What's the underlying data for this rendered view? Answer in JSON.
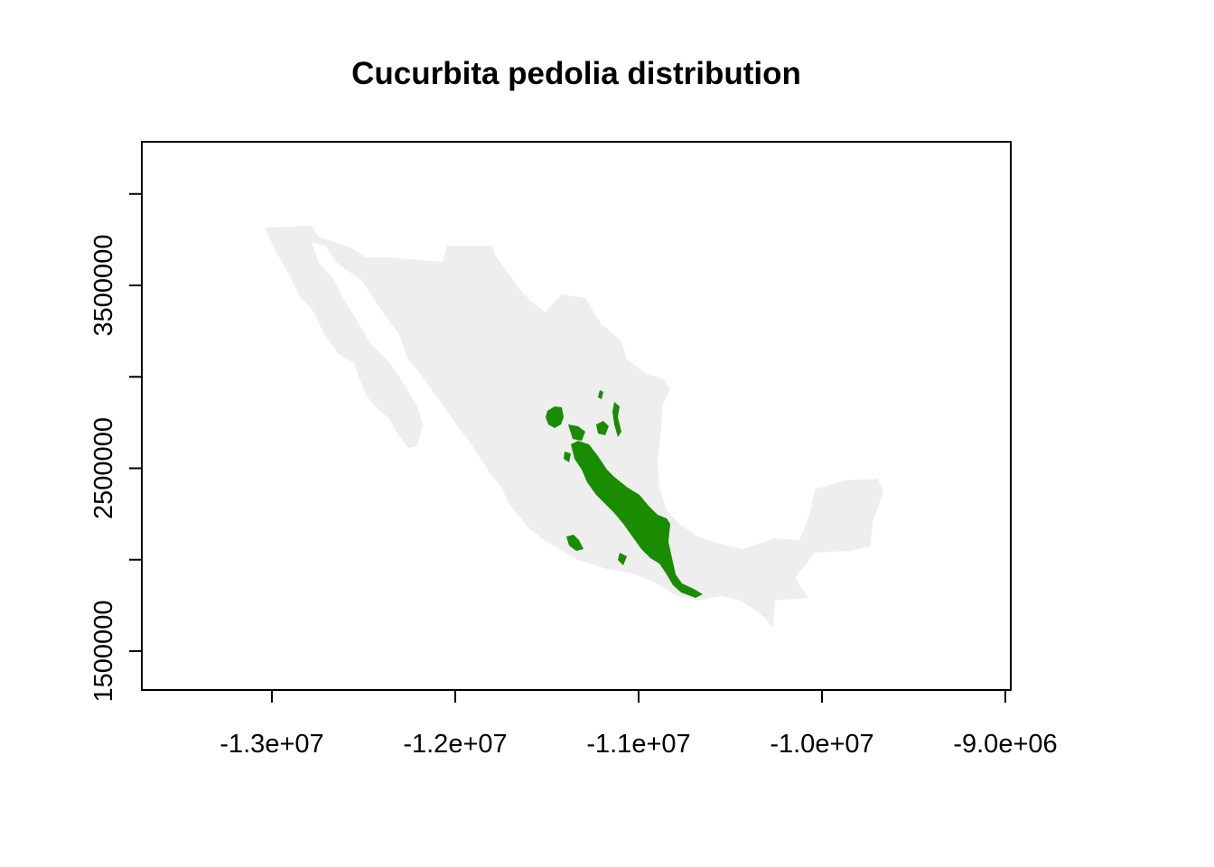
{
  "title": "Cucurbita pedolia distribution",
  "colors": {
    "background_land": "#eeeeee",
    "distribution": "#1a8c00",
    "axis": "#000000"
  },
  "map": {
    "projection": "Web Mercator (EPSG:3857)",
    "xlim": [
      -13700000,
      -8950000
    ],
    "ylim": [
      1300000,
      4300000
    ],
    "x_ticks": [
      {
        "value": -13000000,
        "label": "-1.3e+07"
      },
      {
        "value": -12000000,
        "label": "-1.2e+07"
      },
      {
        "value": -11000000,
        "label": "-1.1e+07"
      },
      {
        "value": -10000000,
        "label": "-1.0e+07"
      },
      {
        "value": -9000000,
        "label": "-9.0e+06"
      }
    ],
    "y_ticks": [
      {
        "value": 1500000,
        "label": "1500000"
      },
      {
        "value": 2000000,
        "label": ""
      },
      {
        "value": 2500000,
        "label": "2500000"
      },
      {
        "value": 3000000,
        "label": ""
      },
      {
        "value": 3500000,
        "label": "3500000"
      },
      {
        "value": 4000000,
        "label": ""
      }
    ],
    "layers": [
      {
        "name": "Mexico",
        "color": "#eeeeee"
      },
      {
        "name": "Cucurbita pedolia range",
        "color": "#1a8c00"
      }
    ]
  }
}
